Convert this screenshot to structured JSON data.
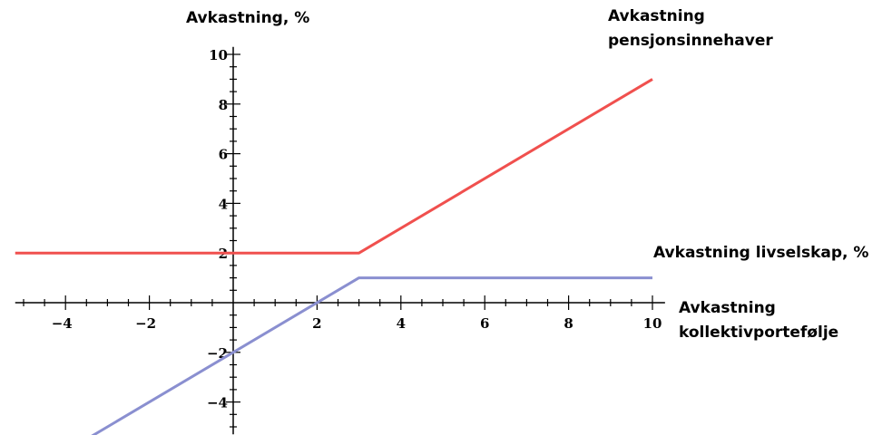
{
  "chart_data": {
    "type": "line",
    "x_axis_label": [
      "Avkastning",
      "kollektivportefølje"
    ],
    "y_axis_label": "Avkastning, %",
    "xlim": [
      -5.2,
      10.3
    ],
    "ylim": [
      -5.3,
      10.3
    ],
    "x_ticks": [
      -4,
      -2,
      2,
      4,
      6,
      8,
      10
    ],
    "y_ticks": [
      -4,
      -2,
      2,
      4,
      6,
      8,
      10
    ],
    "grid": false,
    "series": [
      {
        "name": "Avkastning pensjonsinnehaver",
        "label_lines": [
          "Avkastning",
          "pensjonsinnehaver"
        ],
        "color": "#f0504e",
        "points": [
          [
            -5.2,
            2
          ],
          [
            3,
            2
          ],
          [
            10,
            9
          ]
        ]
      },
      {
        "name": "Avkastning livselskap, %",
        "label_lines": [
          "Avkastning livselskap, %"
        ],
        "color": "#8a8fd0",
        "points": [
          [
            -3.5,
            -5.5
          ],
          [
            3,
            1
          ],
          [
            10,
            1
          ]
        ]
      }
    ]
  }
}
